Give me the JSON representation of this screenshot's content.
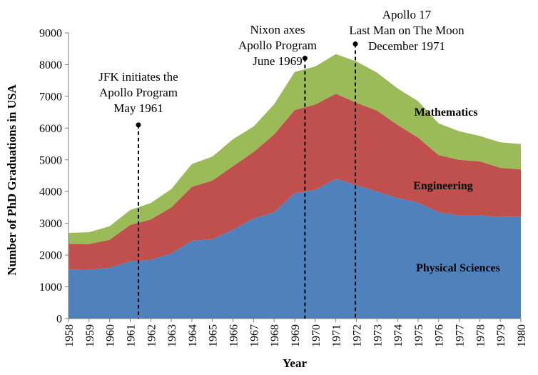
{
  "chart_data": {
    "type": "area",
    "stacked": true,
    "title": "",
    "xlabel": "Year",
    "ylabel": "Number of PhD Graduations in USA",
    "ylim": [
      0,
      9000
    ],
    "yticks": [
      0,
      1000,
      2000,
      3000,
      4000,
      5000,
      6000,
      7000,
      8000,
      9000
    ],
    "x": [
      1958,
      1959,
      1960,
      1961,
      1962,
      1963,
      1964,
      1965,
      1966,
      1967,
      1968,
      1969,
      1970,
      1971,
      1972,
      1973,
      1974,
      1975,
      1976,
      1977,
      1978,
      1979,
      1980
    ],
    "series": [
      {
        "name": "Physical Sciences",
        "color": "#4f81bd",
        "values": [
          1550,
          1540,
          1600,
          1800,
          1850,
          2050,
          2450,
          2500,
          2800,
          3150,
          3350,
          3950,
          4050,
          4400,
          4200,
          4000,
          3800,
          3650,
          3350,
          3250,
          3250,
          3200,
          3200
        ]
      },
      {
        "name": "Engineering",
        "color": "#c0504d",
        "values": [
          800,
          810,
          880,
          1150,
          1270,
          1450,
          1700,
          1850,
          2000,
          2100,
          2450,
          2620,
          2690,
          2680,
          2600,
          2550,
          2300,
          2050,
          1800,
          1750,
          1700,
          1550,
          1500
        ]
      },
      {
        "name": "Mathematics",
        "color": "#9bbb59",
        "values": [
          350,
          370,
          430,
          470,
          520,
          580,
          720,
          750,
          850,
          800,
          950,
          1200,
          1200,
          1250,
          1300,
          1200,
          1150,
          1150,
          1000,
          900,
          800,
          800,
          800
        ]
      }
    ],
    "annotations": [
      {
        "lines": [
          "JFK initiates the",
          "Apollo Program",
          "May 1961"
        ],
        "x": 1961.4,
        "y": 6100
      },
      {
        "lines": [
          "Nixon axes",
          "Apollo Program",
          "June 1969"
        ],
        "x": 1969.5,
        "y": 8200
      },
      {
        "lines": [
          "Apollo 17",
          "Last Man on The Moon",
          "December 1971"
        ],
        "x": 1971.95,
        "y": 8650
      }
    ],
    "grid": false,
    "legend": "inline-labels"
  }
}
